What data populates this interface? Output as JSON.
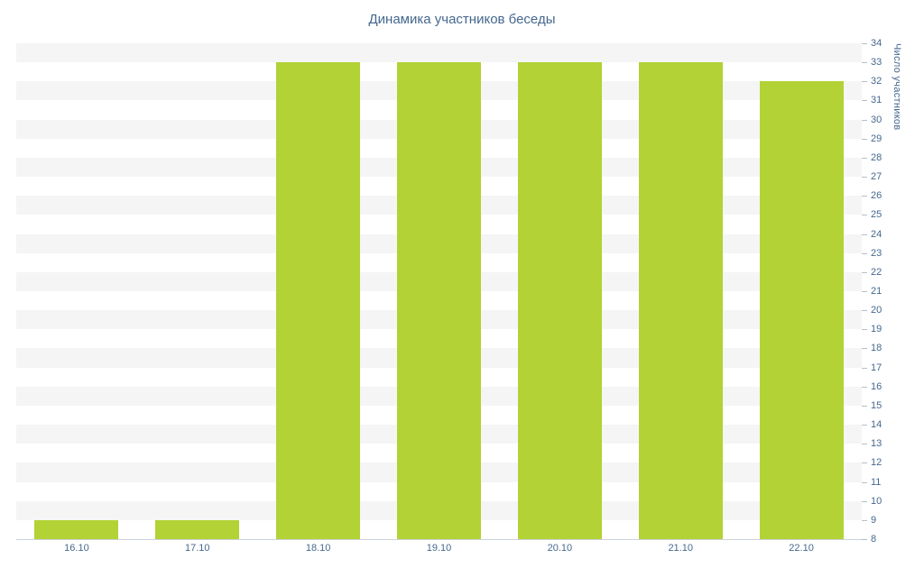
{
  "chart": {
    "title": "Динамика участников беседы",
    "y_axis_title": "Число участников"
  },
  "chart_data": {
    "type": "bar",
    "title": "Динамика участников беседы",
    "categories": [
      "16.10",
      "17.10",
      "18.10",
      "19.10",
      "20.10",
      "21.10",
      "22.10"
    ],
    "values": [
      9,
      9,
      33,
      33,
      33,
      33,
      32
    ],
    "xlabel": "",
    "ylabel": "Число участников",
    "ylim": [
      8,
      34
    ],
    "ytick_step": 1,
    "grid": "alternating-horizontal-bands",
    "legend": "none",
    "colors": {
      "bar": "#b2d235",
      "label": "#45688e",
      "band_gray": "#f5f5f5",
      "band_white": "#ffffff",
      "axis_line": "#ccd1dd",
      "tick": "#b5bfca"
    }
  }
}
